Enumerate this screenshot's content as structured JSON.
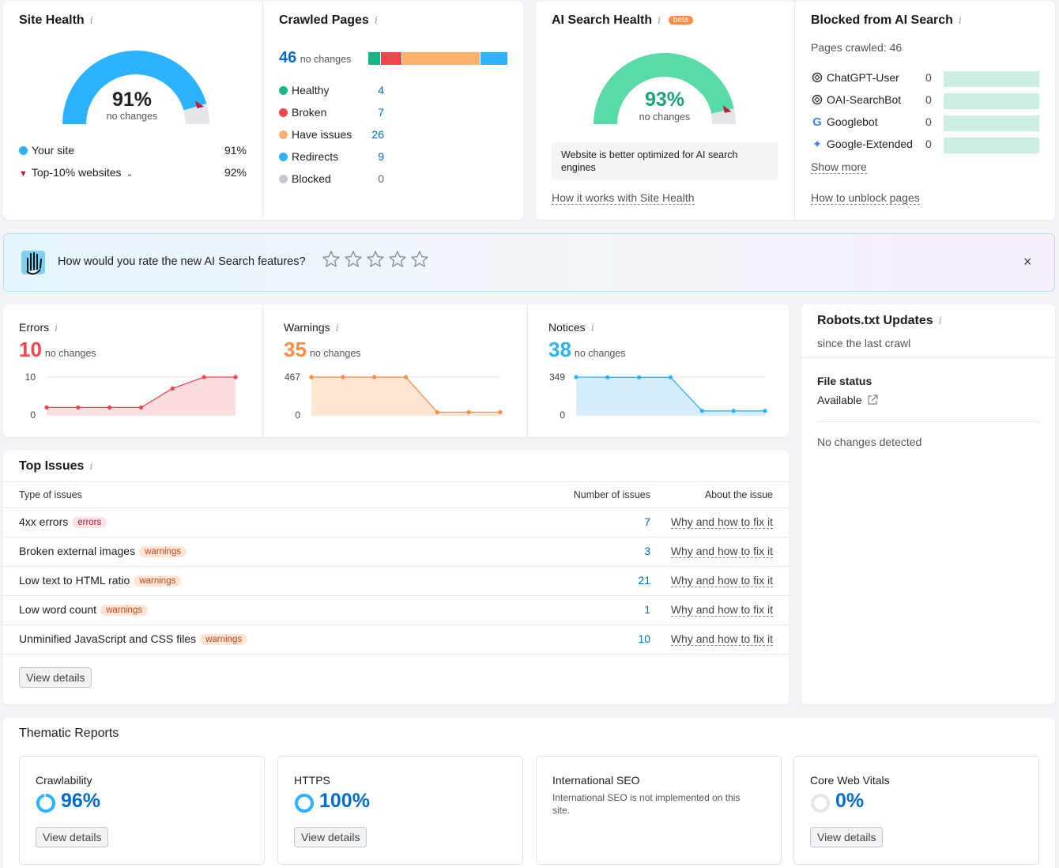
{
  "site_health": {
    "title": "Site Health",
    "value": "91%",
    "percent": 91,
    "note": "no changes",
    "legend": [
      {
        "label": "Your site",
        "value": "91%"
      },
      {
        "label": "Top-10% websites",
        "value": "92%"
      }
    ]
  },
  "crawled_pages": {
    "title": "Crawled Pages",
    "total": "46",
    "note": "no changes",
    "items": [
      {
        "label": "Healthy",
        "value": "4",
        "count": 4,
        "color": "#12b886"
      },
      {
        "label": "Broken",
        "value": "7",
        "count": 7,
        "color": "#f0474f"
      },
      {
        "label": "Have issues",
        "value": "26",
        "count": 26,
        "color": "#ffb16b"
      },
      {
        "label": "Redirects",
        "value": "9",
        "count": 9,
        "color": "#2bb3ff"
      },
      {
        "label": "Blocked",
        "value": "0",
        "count": 0,
        "color": "#c4c7cf"
      }
    ]
  },
  "ai_health": {
    "title": "AI Search Health",
    "beta": "beta",
    "value": "93%",
    "percent": 93,
    "note": "no changes",
    "message": "Website is better optimized for AI search engines",
    "link": "How it works with Site Health"
  },
  "blocked_ai": {
    "title": "Blocked from AI Search",
    "pages_crawled": "Pages crawled: 46",
    "bots": [
      {
        "name": "ChatGPT-User",
        "value": "0",
        "icon": "openai-icon"
      },
      {
        "name": "OAI-SearchBot",
        "value": "0",
        "icon": "openai-icon"
      },
      {
        "name": "Googlebot",
        "value": "0",
        "icon": "google-icon"
      },
      {
        "name": "Google-Extended",
        "value": "0",
        "icon": "gemini-icon"
      }
    ],
    "show_more": "Show more",
    "link": "How to unblock pages"
  },
  "feedback": {
    "question": "How would you rate the new AI Search features?",
    "stars": 5
  },
  "issues_summary": [
    {
      "key": "errors",
      "label": "Errors",
      "value": "10",
      "note": "no changes",
      "color": "#f0474f",
      "fill": "#fddde0",
      "ymax": "10",
      "ymin": "0",
      "max": 10,
      "series": [
        2,
        2,
        2,
        2,
        7,
        10,
        10
      ]
    },
    {
      "key": "warnings",
      "label": "Warnings",
      "value": "35",
      "note": "no changes",
      "color": "#ff8c43",
      "fill": "#ffe6d2",
      "ymax": "467",
      "ymin": "0",
      "max": 467,
      "series": [
        467,
        467,
        467,
        467,
        35,
        35,
        35
      ]
    },
    {
      "key": "notices",
      "label": "Notices",
      "value": "38",
      "note": "no changes",
      "color": "#2bb3ff",
      "fill": "#d4eefc",
      "ymax": "349",
      "ymin": "0",
      "max": 349,
      "series": [
        349,
        347,
        347,
        347,
        38,
        38,
        38
      ]
    }
  ],
  "robots": {
    "title": "Robots.txt Updates",
    "subtitle": "since the last crawl",
    "file_status_label": "File status",
    "file_status": "Available",
    "changes": "No changes detected"
  },
  "top_issues": {
    "title": "Top Issues",
    "col_type": "Type of issues",
    "col_count": "Number of issues",
    "col_about": "About the issue",
    "rows": [
      {
        "name": "4xx errors",
        "badge": "errors",
        "count": "7",
        "link": "Why and how to fix it"
      },
      {
        "name": "Broken external images",
        "badge": "warnings",
        "count": "3",
        "link": "Why and how to fix it"
      },
      {
        "name": "Low text to HTML ratio",
        "badge": "warnings",
        "count": "21",
        "link": "Why and how to fix it"
      },
      {
        "name": "Low word count",
        "badge": "warnings",
        "count": "1",
        "link": "Why and how to fix it"
      },
      {
        "name": "Unminified JavaScript and CSS files",
        "badge": "warnings",
        "count": "10",
        "link": "Why and how to fix it"
      }
    ],
    "view_details": "View details"
  },
  "thematic": {
    "title": "Thematic Reports",
    "reports": [
      {
        "name": "Crawlability",
        "value": "96%",
        "percent": 96,
        "button": "View details"
      },
      {
        "name": "HTTPS",
        "value": "100%",
        "percent": 100,
        "button": "View details"
      },
      {
        "name": "International SEO",
        "description": "International SEO is not implemented on this site."
      },
      {
        "name": "Core Web Vitals",
        "value": "0%",
        "percent": 0,
        "button": "View details"
      }
    ]
  },
  "colors": {
    "accent": "#006dca",
    "gauge_blue": "#2bb3ff",
    "gauge_green": "#59dba8",
    "marker": "#c4183c"
  }
}
